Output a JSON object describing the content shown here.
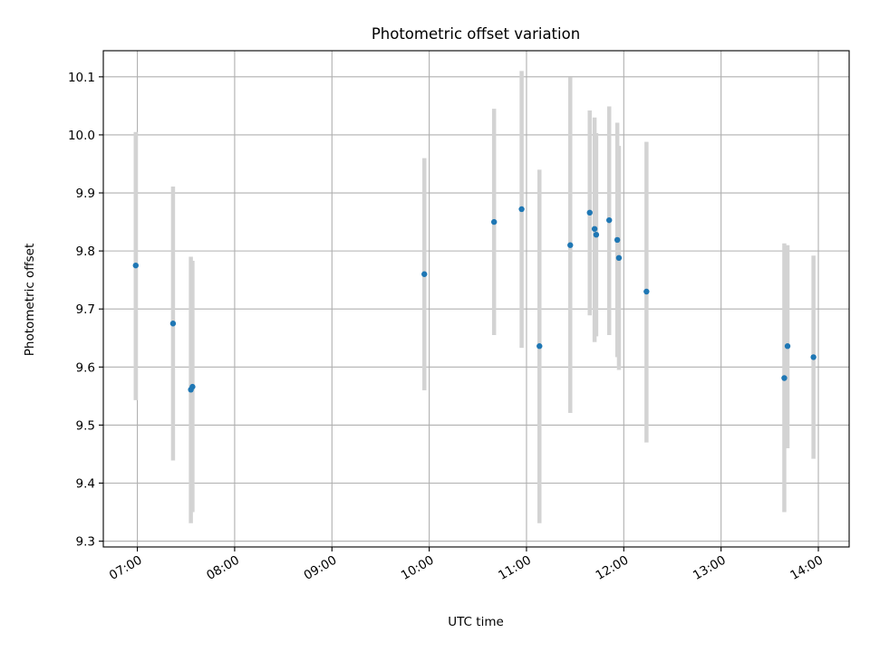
{
  "chart_data": {
    "type": "scatter",
    "title": "Photometric offset variation",
    "xlabel": "UTC time",
    "ylabel": "Photometric offset",
    "grid": true,
    "x_tick_labels": [
      "07:00",
      "08:00",
      "09:00",
      "10:00",
      "11:00",
      "12:00",
      "13:00",
      "14:00"
    ],
    "x_tick_values": [
      "07:00",
      "08:00",
      "09:00",
      "10:00",
      "11:00",
      "12:00",
      "13:00",
      "14:00"
    ],
    "y_tick_labels": [
      "9.3",
      "9.4",
      "9.5",
      "9.6",
      "9.7",
      "9.8",
      "9.9",
      "10.0",
      "10.1"
    ],
    "xlim": [
      "06:39",
      "14:19"
    ],
    "ylim": [
      9.29,
      10.145
    ],
    "marker_color": "#1f77b4",
    "errorbar_color": "#d3d3d3",
    "points": [
      {
        "time": "06:59",
        "y": 9.775,
        "ylow": 9.543,
        "yhigh": 10.005
      },
      {
        "time": "07:22",
        "y": 9.675,
        "ylow": 9.439,
        "yhigh": 9.911
      },
      {
        "time": "07:33",
        "y": 9.561,
        "ylow": 9.331,
        "yhigh": 9.79
      },
      {
        "time": "07:34",
        "y": 9.566,
        "ylow": 9.35,
        "yhigh": 9.783
      },
      {
        "time": "09:57",
        "y": 9.76,
        "ylow": 9.56,
        "yhigh": 9.96
      },
      {
        "time": "10:40",
        "y": 9.85,
        "ylow": 9.655,
        "yhigh": 10.045
      },
      {
        "time": "10:57",
        "y": 9.872,
        "ylow": 9.633,
        "yhigh": 10.11
      },
      {
        "time": "11:08",
        "y": 9.636,
        "ylow": 9.331,
        "yhigh": 9.94
      },
      {
        "time": "11:27",
        "y": 9.81,
        "ylow": 9.521,
        "yhigh": 10.099
      },
      {
        "time": "11:39",
        "y": 9.866,
        "ylow": 9.689,
        "yhigh": 10.042
      },
      {
        "time": "11:42",
        "y": 9.838,
        "ylow": 9.643,
        "yhigh": 10.03
      },
      {
        "time": "11:43",
        "y": 9.828,
        "ylow": 9.653,
        "yhigh": 10.003
      },
      {
        "time": "11:51",
        "y": 9.853,
        "ylow": 9.655,
        "yhigh": 10.049
      },
      {
        "time": "11:56",
        "y": 9.819,
        "ylow": 9.617,
        "yhigh": 10.021
      },
      {
        "time": "11:57",
        "y": 9.788,
        "ylow": 9.595,
        "yhigh": 9.981
      },
      {
        "time": "12:14",
        "y": 9.73,
        "ylow": 9.47,
        "yhigh": 9.988
      },
      {
        "time": "13:39",
        "y": 9.581,
        "ylow": 9.35,
        "yhigh": 9.813
      },
      {
        "time": "13:41",
        "y": 9.636,
        "ylow": 9.46,
        "yhigh": 9.81
      },
      {
        "time": "13:57",
        "y": 9.617,
        "ylow": 9.442,
        "yhigh": 9.792
      }
    ]
  }
}
